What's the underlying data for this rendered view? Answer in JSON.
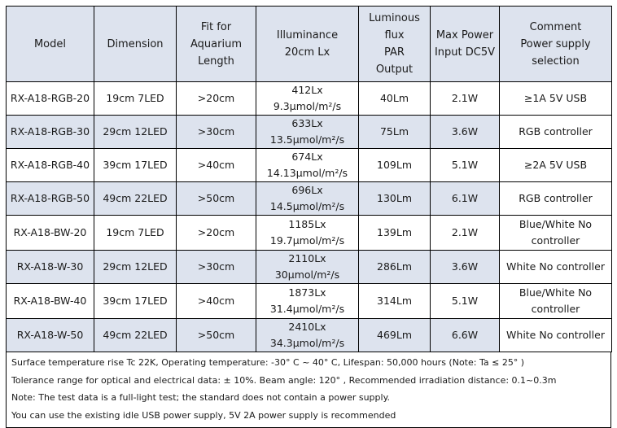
{
  "table": {
    "headers": {
      "model": "Model",
      "dimension": "Dimension",
      "fit": [
        "Fit for",
        "Aquarium",
        "Length"
      ],
      "illuminance": [
        "Illuminance",
        "20cm Lx"
      ],
      "luminous": [
        "Luminous",
        "flux",
        "PAR",
        "Output"
      ],
      "power": [
        "Max Power",
        "Input DC5V"
      ],
      "comment": [
        "Comment",
        "Power supply",
        "selection"
      ]
    },
    "rows": [
      {
        "model": "RX-A18-RGB-20",
        "dimension": "19cm 7LED",
        "fit": ">20cm",
        "illuminance": "412Lx 9.3μmol/m²/s",
        "luminous": "40Lm",
        "power": "2.1W"
      },
      {
        "model": "RX-A18-RGB-30",
        "dimension": "29cm 12LED",
        "fit": ">30cm",
        "illuminance": "633Lx 13.5μmol/m²/s",
        "luminous": "75Lm",
        "power": "3.6W"
      },
      {
        "model": "RX-A18-RGB-40",
        "dimension": "39cm 17LED",
        "fit": ">40cm",
        "illuminance": "674Lx 14.13μmol/m²/s",
        "luminous": "109Lm",
        "power": "5.1W"
      },
      {
        "model": "RX-A18-RGB-50",
        "dimension": "49cm 22LED",
        "fit": ">50cm",
        "illuminance": "696Lx 14.5μmol/m²/s",
        "luminous": "130Lm",
        "power": "6.1W"
      },
      {
        "model": "RX-A18-BW-20",
        "dimension": "19cm 7LED",
        "fit": ">20cm",
        "illuminance": "1185Lx 19.7μmol/m²/s",
        "luminous": "139Lm",
        "power": "2.1W"
      },
      {
        "model": "RX-A18-W-30",
        "dimension": "29cm 12LED",
        "fit": ">30cm",
        "illuminance": "2110Lx 30μmol/m²/s",
        "luminous": "286Lm",
        "power": "3.6W"
      },
      {
        "model": "RX-A18-BW-40",
        "dimension": "39cm 17LED",
        "fit": ">40cm",
        "illuminance": "1873Lx 31.4μmol/m²/s",
        "luminous": "314Lm",
        "power": "5.1W"
      },
      {
        "model": "RX-A18-W-50",
        "dimension": "49cm 22LED",
        "fit": ">50cm",
        "illuminance": "2410Lx 34.3μmol/m²/s",
        "luminous": "469Lm",
        "power": "6.6W"
      }
    ],
    "comments": {
      "r1": "≥1A 5V USB",
      "r2": "RGB controller",
      "r3": "≥2A 5V USB",
      "r4": "RGB controller",
      "r5": [
        "Blue/White No",
        "controller"
      ],
      "r6": "White No controller",
      "r7": [
        "Blue/White No",
        "controller"
      ],
      "r8": "White No controller"
    }
  },
  "notes": [
    "Surface temperature rise Tc 22K, Operating temperature: -30° C ~ 40° C, Lifespan: 50,000 hours (Note: Ta ≤ 25° )",
    "Tolerance range for optical and electrical data: ± 10%.   Beam angle: 120° , Recommended irradiation distance: 0.1~0.3m",
    "Note: The test data is a full-light test; the standard does not contain a power supply.",
    "You can use the existing idle USB power supply, 5V 2A power supply is recommended"
  ],
  "colors": {
    "header_bg": "#dde3ee",
    "shade_bg": "#dde3ee",
    "border": "#000000"
  }
}
